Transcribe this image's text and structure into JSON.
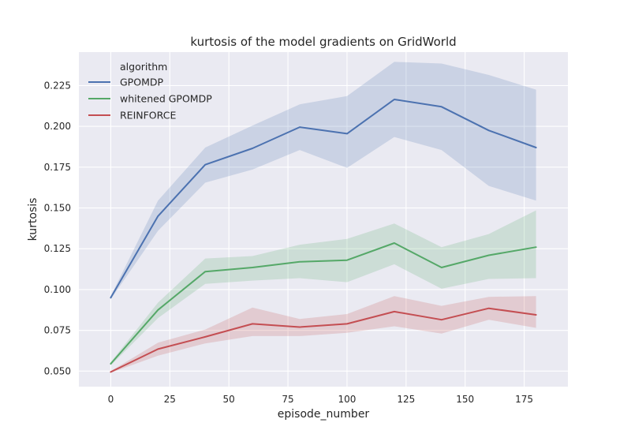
{
  "chart_data": {
    "type": "line",
    "title": "kurtosis of the model gradients on GridWorld",
    "xlabel": "episode_number",
    "ylabel": "kurtosis",
    "xlim": [
      -13.5,
      193.5
    ],
    "ylim": [
      0.0405,
      0.2455
    ],
    "xticks": [
      0,
      25,
      50,
      75,
      100,
      125,
      150,
      175
    ],
    "xtick_labels": [
      "0",
      "25",
      "50",
      "75",
      "100",
      "125",
      "150",
      "175"
    ],
    "yticks": [
      0.05,
      0.075,
      0.1,
      0.125,
      0.15,
      0.175,
      0.2,
      0.225
    ],
    "ytick_labels": [
      "0.050",
      "0.075",
      "0.100",
      "0.125",
      "0.150",
      "0.175",
      "0.200",
      "0.225"
    ],
    "grid": true,
    "legend": {
      "title": "algorithm",
      "placement": "top-left"
    },
    "x": [
      0,
      20,
      40,
      60,
      80,
      100,
      120,
      140,
      160,
      180
    ],
    "series": [
      {
        "name": "GPOMDP",
        "color": "#4c72b0",
        "values": [
          0.095,
          0.145,
          0.1765,
          0.1865,
          0.1995,
          0.1955,
          0.2165,
          0.212,
          0.1975,
          0.187
        ],
        "lower": [
          0.094,
          0.136,
          0.1655,
          0.1735,
          0.1855,
          0.1745,
          0.1935,
          0.1855,
          0.1635,
          0.1545
        ],
        "upper": [
          0.096,
          0.1545,
          0.187,
          0.2005,
          0.2135,
          0.2185,
          0.2395,
          0.2385,
          0.2315,
          0.2225
        ]
      },
      {
        "name": "whitened GPOMDP",
        "color": "#55a868",
        "values": [
          0.0545,
          0.0875,
          0.111,
          0.1135,
          0.117,
          0.118,
          0.1285,
          0.1135,
          0.121,
          0.126
        ],
        "lower": [
          0.0535,
          0.0825,
          0.1035,
          0.1055,
          0.107,
          0.1045,
          0.1155,
          0.1005,
          0.1065,
          0.107
        ],
        "upper": [
          0.0555,
          0.092,
          0.119,
          0.1205,
          0.1275,
          0.131,
          0.1405,
          0.126,
          0.134,
          0.1485
        ]
      },
      {
        "name": "REINFORCE",
        "color": "#c44e52",
        "values": [
          0.0495,
          0.0635,
          0.071,
          0.079,
          0.077,
          0.079,
          0.0865,
          0.0815,
          0.0885,
          0.0845
        ],
        "lower": [
          0.049,
          0.0595,
          0.067,
          0.0715,
          0.0715,
          0.0735,
          0.0775,
          0.073,
          0.0815,
          0.0765
        ],
        "upper": [
          0.05,
          0.0675,
          0.0755,
          0.089,
          0.082,
          0.085,
          0.096,
          0.09,
          0.0955,
          0.096
        ]
      }
    ]
  }
}
